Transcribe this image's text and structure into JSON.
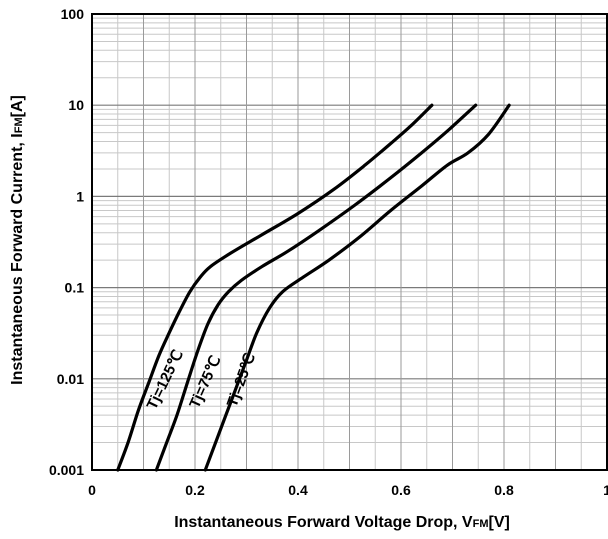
{
  "chart_data": {
    "type": "line",
    "xlabel": "Instantaneous Forward Voltage Drop, VFM[V]",
    "xlabel_parts": {
      "main": "Instantaneous Forward Voltage Drop, V",
      "sub": "FM",
      "unit": "[V]"
    },
    "ylabel": "Instantaneous Forward Current, IFM[A]",
    "ylabel_parts": {
      "main": "Instantaneous Forward Current, I",
      "sub": "FM",
      "unit": "[A]"
    },
    "xlim": [
      0,
      1
    ],
    "ylim": [
      0.001,
      100
    ],
    "y_scale": "log",
    "grid": true,
    "x_ticks": [
      "0",
      "0.2",
      "0.4",
      "0.6",
      "0.8",
      "1"
    ],
    "y_ticks": [
      "0.001",
      "0.01",
      "0.1",
      "1",
      "10",
      "100"
    ],
    "series": [
      {
        "name": "Tj=125℃",
        "color": "#000000",
        "points": [
          [
            0.05,
            0.001
          ],
          [
            0.07,
            0.002
          ],
          [
            0.09,
            0.0045
          ],
          [
            0.11,
            0.009
          ],
          [
            0.13,
            0.018
          ],
          [
            0.15,
            0.032
          ],
          [
            0.17,
            0.055
          ],
          [
            0.19,
            0.09
          ],
          [
            0.21,
            0.13
          ],
          [
            0.23,
            0.17
          ],
          [
            0.27,
            0.24
          ],
          [
            0.33,
            0.38
          ],
          [
            0.4,
            0.65
          ],
          [
            0.47,
            1.2
          ],
          [
            0.53,
            2.2
          ],
          [
            0.58,
            3.8
          ],
          [
            0.62,
            6.0
          ],
          [
            0.66,
            10.0
          ]
        ]
      },
      {
        "name": "Tj=75℃",
        "color": "#000000",
        "points": [
          [
            0.125,
            0.001
          ],
          [
            0.145,
            0.002
          ],
          [
            0.165,
            0.004
          ],
          [
            0.185,
            0.009
          ],
          [
            0.205,
            0.02
          ],
          [
            0.225,
            0.04
          ],
          [
            0.245,
            0.065
          ],
          [
            0.265,
            0.09
          ],
          [
            0.29,
            0.12
          ],
          [
            0.33,
            0.17
          ],
          [
            0.38,
            0.25
          ],
          [
            0.44,
            0.42
          ],
          [
            0.51,
            0.8
          ],
          [
            0.58,
            1.6
          ],
          [
            0.64,
            3.0
          ],
          [
            0.69,
            5.2
          ],
          [
            0.745,
            10.0
          ]
        ]
      },
      {
        "name": "Tj=25℃",
        "color": "#000000",
        "points": [
          [
            0.22,
            0.001
          ],
          [
            0.24,
            0.002
          ],
          [
            0.26,
            0.004
          ],
          [
            0.28,
            0.008
          ],
          [
            0.3,
            0.016
          ],
          [
            0.32,
            0.032
          ],
          [
            0.345,
            0.06
          ],
          [
            0.37,
            0.09
          ],
          [
            0.41,
            0.13
          ],
          [
            0.46,
            0.2
          ],
          [
            0.52,
            0.36
          ],
          [
            0.58,
            0.7
          ],
          [
            0.64,
            1.3
          ],
          [
            0.69,
            2.2
          ],
          [
            0.73,
            3.0
          ],
          [
            0.77,
            4.8
          ],
          [
            0.81,
            10.0
          ]
        ]
      }
    ]
  }
}
